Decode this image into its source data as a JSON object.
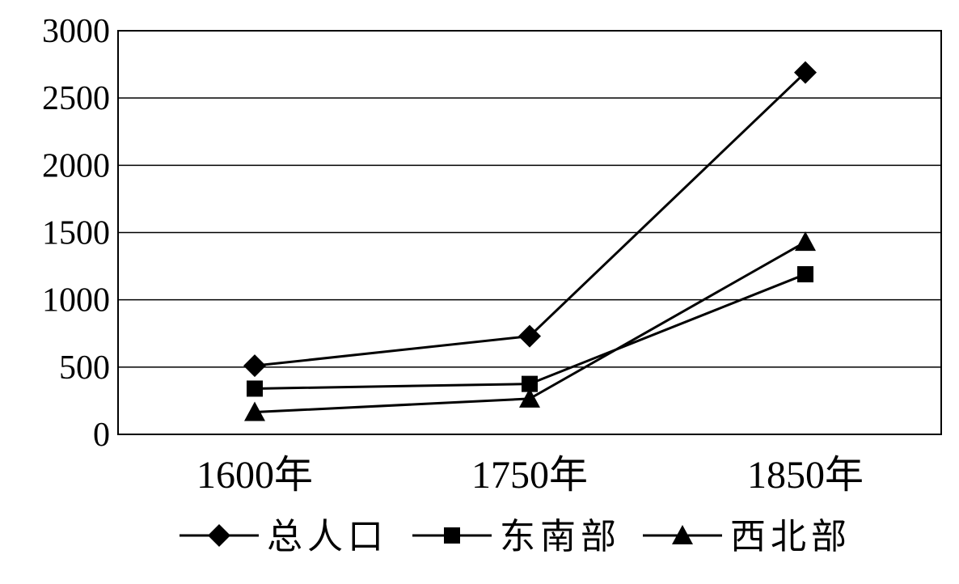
{
  "chart_data": {
    "type": "line",
    "categories": [
      "1600年",
      "1750年",
      "1850年"
    ],
    "ylim": [
      0,
      3000
    ],
    "yticks": [
      0,
      500,
      1000,
      1500,
      2000,
      2500,
      3000
    ],
    "grid": true,
    "legend_position": "bottom",
    "series": [
      {
        "name": "总人口",
        "marker": "diamond",
        "values": [
          510,
          730,
          2690
        ]
      },
      {
        "name": "东南部",
        "marker": "square",
        "values": [
          340,
          375,
          1190
        ]
      },
      {
        "name": "西北部",
        "marker": "triangle",
        "values": [
          165,
          265,
          1430
        ]
      }
    ],
    "colors": {
      "line": "#000000",
      "grid": "#000000",
      "background": "#ffffff"
    }
  }
}
